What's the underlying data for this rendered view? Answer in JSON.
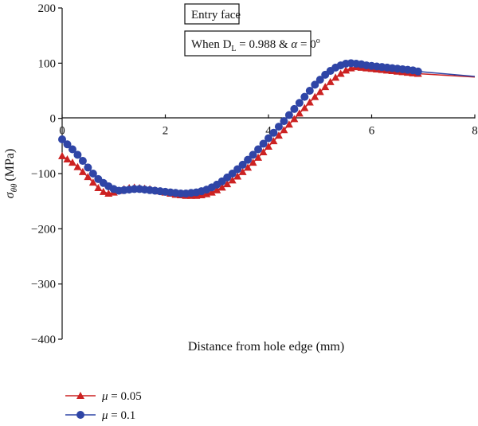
{
  "chart_data": {
    "type": "line",
    "xlabel": "Distance from hole edge (mm)",
    "ylabel_symbol": "σ",
    "ylabel_subscript": "θθ",
    "ylabel_unit": "(MPa)",
    "xlim": [
      0,
      8
    ],
    "ylim": [
      -400,
      200
    ],
    "x_ticks": [
      0,
      2,
      4,
      6,
      8
    ],
    "y_ticks": [
      200,
      100,
      0,
      -100,
      -200,
      -300,
      -400
    ],
    "y_tick_labels": [
      "200",
      "100",
      "0",
      "−100",
      "−200",
      "−300",
      "−400"
    ],
    "grid": false,
    "annotations": {
      "face_label": "Entry face",
      "condition_prefix": "When D",
      "condition_subscript": "L",
      "condition_middle": " = 0.988 & ",
      "condition_alpha": "α",
      "condition_suffix": " = 0",
      "condition_degree": "o"
    },
    "legend_position": "bottom-left",
    "series": [
      {
        "name": "μ = 0.05",
        "legend_symbol": "μ",
        "legend_value": " = 0.05",
        "color": "#cc2222",
        "marker": "triangle",
        "x": [
          0,
          0.1,
          0.2,
          0.3,
          0.4,
          0.5,
          0.6,
          0.7,
          0.8,
          0.9,
          1.0,
          1.1,
          1.2,
          1.3,
          1.4,
          1.5,
          1.6,
          1.7,
          1.8,
          1.9,
          2.0,
          2.1,
          2.2,
          2.3,
          2.4,
          2.5,
          2.6,
          2.7,
          2.8,
          2.9,
          3.0,
          3.1,
          3.2,
          3.3,
          3.4,
          3.5,
          3.6,
          3.7,
          3.8,
          3.9,
          4.0,
          4.1,
          4.2,
          4.3,
          4.4,
          4.5,
          4.6,
          4.7,
          4.8,
          4.9,
          5.0,
          5.1,
          5.2,
          5.3,
          5.4,
          5.5,
          5.6,
          5.7,
          5.8,
          5.9,
          6.0,
          6.1,
          6.2,
          6.3,
          6.4,
          6.5,
          6.6,
          6.7,
          6.8,
          6.9,
          8.0
        ],
        "y": [
          -68,
          -74,
          -80,
          -88,
          -97,
          -106,
          -116,
          -126,
          -133,
          -136,
          -134,
          -131,
          -128,
          -126,
          -125,
          -126,
          -127,
          -128,
          -130,
          -132,
          -134,
          -136,
          -138,
          -139,
          -140,
          -140,
          -140,
          -139,
          -137,
          -134,
          -130,
          -125,
          -119,
          -112,
          -105,
          -97,
          -89,
          -80,
          -71,
          -61,
          -51,
          -41,
          -31,
          -21,
          -11,
          -1,
          9,
          19,
          29,
          39,
          48,
          57,
          66,
          74,
          81,
          87,
          91,
          93,
          92,
          91,
          90,
          89,
          88,
          87,
          86,
          85,
          84,
          83,
          82,
          81,
          75
        ]
      },
      {
        "name": "μ = 0.1",
        "legend_symbol": "μ",
        "legend_value": " = 0.1",
        "color": "#2f45a6",
        "marker": "circle",
        "x": [
          0,
          0.1,
          0.2,
          0.3,
          0.4,
          0.5,
          0.6,
          0.7,
          0.8,
          0.9,
          1.0,
          1.1,
          1.2,
          1.3,
          1.4,
          1.5,
          1.6,
          1.7,
          1.8,
          1.9,
          2.0,
          2.1,
          2.2,
          2.3,
          2.4,
          2.5,
          2.6,
          2.7,
          2.8,
          2.9,
          3.0,
          3.1,
          3.2,
          3.3,
          3.4,
          3.5,
          3.6,
          3.7,
          3.8,
          3.9,
          4.0,
          4.1,
          4.2,
          4.3,
          4.4,
          4.5,
          4.6,
          4.7,
          4.8,
          4.9,
          5.0,
          5.1,
          5.2,
          5.3,
          5.4,
          5.5,
          5.6,
          5.7,
          5.8,
          5.9,
          6.0,
          6.1,
          6.2,
          6.3,
          6.4,
          6.5,
          6.6,
          6.7,
          6.8,
          6.9,
          8.0
        ],
        "y": [
          -38,
          -47,
          -56,
          -66,
          -77,
          -89,
          -100,
          -110,
          -117,
          -123,
          -128,
          -131,
          -130,
          -129,
          -128,
          -128,
          -129,
          -130,
          -131,
          -132,
          -133,
          -134,
          -135,
          -136,
          -136,
          -135,
          -134,
          -132,
          -129,
          -125,
          -120,
          -114,
          -107,
          -100,
          -92,
          -84,
          -75,
          -66,
          -56,
          -46,
          -36,
          -26,
          -15,
          -5,
          6,
          17,
          28,
          39,
          50,
          61,
          70,
          79,
          86,
          92,
          96,
          99,
          100,
          99,
          98,
          96,
          95,
          94,
          93,
          92,
          91,
          90,
          89,
          88,
          87,
          85,
          76
        ]
      }
    ]
  }
}
